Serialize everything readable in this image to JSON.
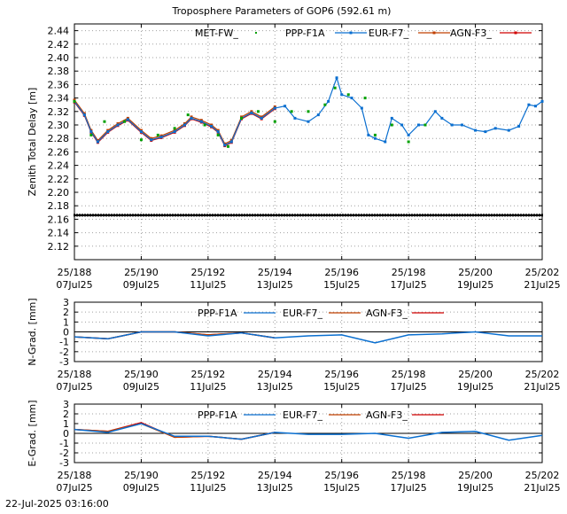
{
  "page_title": "Troposphere Parameters of GOP6 (592.61 m)",
  "footer_timestamp": "22-Jul-2025 03:16:00",
  "x_tick_labels": [
    {
      "top": "25/188",
      "bottom": "07Jul25"
    },
    {
      "top": "25/190",
      "bottom": "09Jul25"
    },
    {
      "top": "25/192",
      "bottom": "11Jul25"
    },
    {
      "top": "25/194",
      "bottom": "13Jul25"
    },
    {
      "top": "25/196",
      "bottom": "15Jul25"
    },
    {
      "top": "25/198",
      "bottom": "17Jul25"
    },
    {
      "top": "25/200",
      "bottom": "19Jul25"
    },
    {
      "top": "25/202",
      "bottom": "21Jul25"
    }
  ],
  "colors": {
    "met": "#00a000",
    "ppp": "#0a6fd0",
    "eur": "#c04000",
    "agn": "#d00000",
    "ref": "#000000",
    "grid": "#a0a0a0"
  },
  "chart_data": [
    {
      "type": "line",
      "ylabel": "Zenith Total Delay [m]",
      "xlim": [
        188,
        202
      ],
      "ylim": [
        2.1,
        2.45
      ],
      "yticks": [
        2.12,
        2.14,
        2.16,
        2.18,
        2.2,
        2.22,
        2.24,
        2.26,
        2.28,
        2.3,
        2.32,
        2.34,
        2.36,
        2.38,
        2.4,
        2.42,
        2.44
      ],
      "ytick_labels": [
        "2.12",
        "2.14",
        "2.16",
        "2.18",
        "2.20",
        "2.22",
        "2.24",
        "2.26",
        "2.28",
        "2.30",
        "2.32",
        "2.34",
        "2.36",
        "2.38",
        "2.40",
        "2.42",
        "2.44"
      ],
      "grid": true,
      "legend_position": "top",
      "reference_line": {
        "y": 2.166
      },
      "series": [
        {
          "name": "MET-FW_",
          "style": "points",
          "x": [
            188.0,
            188.5,
            188.9,
            189.5,
            190.0,
            190.5,
            191.0,
            191.4,
            191.9,
            192.3,
            192.6,
            193.0,
            193.5,
            194.0,
            194.5,
            195.0,
            195.5,
            195.8,
            196.2,
            196.7,
            197.0,
            197.5,
            198.0,
            198.5
          ],
          "y": [
            2.335,
            2.285,
            2.305,
            2.305,
            2.278,
            2.285,
            2.295,
            2.315,
            2.3,
            2.285,
            2.268,
            2.31,
            2.32,
            2.305,
            2.32,
            2.32,
            2.33,
            2.355,
            2.345,
            2.34,
            2.285,
            2.3,
            2.275,
            2.3
          ]
        },
        {
          "name": "PPP-F1A",
          "style": "line-points",
          "x": [
            188.0,
            188.3,
            188.5,
            188.7,
            189.0,
            189.3,
            189.6,
            190.0,
            190.3,
            190.6,
            191.0,
            191.3,
            191.5,
            191.8,
            192.1,
            192.3,
            192.5,
            192.7,
            193.0,
            193.3,
            193.6,
            194.0,
            194.3,
            194.6,
            195.0,
            195.3,
            195.6,
            195.85,
            196.0,
            196.3,
            196.6,
            196.8,
            197.0,
            197.3,
            197.5,
            197.8,
            198.0,
            198.3,
            198.5,
            198.8,
            199.0,
            199.3,
            199.6,
            200.0,
            200.3,
            200.6,
            201.0,
            201.3,
            201.6,
            201.8,
            202.0
          ],
          "y": [
            2.335,
            2.315,
            2.29,
            2.275,
            2.29,
            2.3,
            2.308,
            2.29,
            2.278,
            2.282,
            2.29,
            2.3,
            2.31,
            2.305,
            2.298,
            2.29,
            2.27,
            2.275,
            2.31,
            2.318,
            2.31,
            2.325,
            2.328,
            2.31,
            2.305,
            2.315,
            2.335,
            2.37,
            2.345,
            2.34,
            2.325,
            2.285,
            2.28,
            2.275,
            2.31,
            2.3,
            2.285,
            2.3,
            2.3,
            2.32,
            2.31,
            2.3,
            2.3,
            2.292,
            2.29,
            2.295,
            2.292,
            2.298,
            2.33,
            2.328,
            2.335
          ]
        },
        {
          "name": "EUR-F7_",
          "style": "line-points",
          "x": [
            188.0,
            188.3,
            188.5,
            188.7,
            189.0,
            189.3,
            189.6,
            190.0,
            190.3,
            190.6,
            191.0,
            191.3,
            191.5,
            191.8,
            192.1,
            192.3,
            192.5,
            192.7,
            193.0,
            193.3,
            193.6,
            194.0
          ],
          "y": [
            2.337,
            2.317,
            2.292,
            2.277,
            2.292,
            2.302,
            2.31,
            2.292,
            2.28,
            2.284,
            2.292,
            2.302,
            2.312,
            2.307,
            2.3,
            2.292,
            2.272,
            2.277,
            2.312,
            2.32,
            2.312,
            2.327
          ]
        },
        {
          "name": "AGN-F3_",
          "style": "line-points",
          "x": [
            188.0,
            188.3,
            188.5,
            188.7,
            189.0,
            189.3,
            189.6,
            190.0,
            190.3,
            190.6,
            191.0,
            191.3,
            191.5,
            191.8,
            192.1,
            192.3,
            192.5,
            192.7,
            193.0,
            193.3,
            193.6,
            194.0
          ],
          "y": [
            2.334,
            2.314,
            2.289,
            2.274,
            2.289,
            2.299,
            2.307,
            2.289,
            2.277,
            2.281,
            2.289,
            2.299,
            2.309,
            2.304,
            2.297,
            2.289,
            2.269,
            2.274,
            2.309,
            2.317,
            2.309,
            2.324
          ]
        }
      ]
    },
    {
      "type": "line",
      "ylabel": "N-Grad. [mm]",
      "xlim": [
        188,
        202
      ],
      "ylim": [
        -3,
        3
      ],
      "yticks": [
        -3,
        -2,
        -1,
        0,
        1,
        2,
        3
      ],
      "ytick_labels": [
        "-3",
        "-2",
        "-1",
        "0",
        "1",
        "2",
        "3"
      ],
      "grid": true,
      "legend_position": "top",
      "zero_line": true,
      "series": [
        {
          "name": "PPP-F1A",
          "x": [
            188,
            189,
            190,
            191,
            192,
            193,
            194,
            195,
            196,
            197,
            198,
            199,
            200,
            201,
            202
          ],
          "y": [
            -0.5,
            -0.7,
            0.0,
            0.0,
            -0.4,
            -0.1,
            -0.6,
            -0.4,
            -0.3,
            -1.1,
            -0.3,
            -0.2,
            0.0,
            -0.4,
            -0.4
          ]
        },
        {
          "name": "EUR-F7_",
          "x": [
            188,
            189,
            190,
            191,
            192,
            193,
            194
          ],
          "y": [
            -0.5,
            -0.7,
            0.0,
            0.0,
            -0.3,
            -0.1,
            -0.6
          ]
        },
        {
          "name": "AGN-F3_",
          "x": [
            188,
            189,
            190,
            191,
            192,
            193,
            194
          ],
          "y": [
            -0.5,
            -0.7,
            0.0,
            0.0,
            -0.3,
            -0.1,
            -0.6
          ]
        }
      ]
    },
    {
      "type": "line",
      "ylabel": "E-Grad. [mm]",
      "xlim": [
        188,
        202
      ],
      "ylim": [
        -3,
        3
      ],
      "yticks": [
        -3,
        -2,
        -1,
        0,
        1,
        2,
        3
      ],
      "ytick_labels": [
        "-3",
        "-2",
        "-1",
        "0",
        "1",
        "2",
        "3"
      ],
      "grid": true,
      "legend_position": "top",
      "zero_line": true,
      "series": [
        {
          "name": "PPP-F1A",
          "x": [
            188,
            189,
            190,
            191,
            192,
            193,
            194,
            195,
            196,
            197,
            198,
            199,
            200,
            201,
            202
          ],
          "y": [
            0.4,
            0.1,
            1.0,
            -0.3,
            -0.3,
            -0.6,
            0.1,
            -0.1,
            -0.1,
            0.0,
            -0.5,
            0.1,
            0.2,
            -0.7,
            -0.2
          ]
        },
        {
          "name": "EUR-F7_",
          "x": [
            188,
            189,
            190,
            191,
            192,
            193,
            194
          ],
          "y": [
            0.4,
            0.2,
            1.0,
            -0.4,
            -0.3,
            -0.6,
            0.1
          ]
        },
        {
          "name": "AGN-F3_",
          "x": [
            188,
            189,
            190,
            191,
            192,
            193,
            194
          ],
          "y": [
            0.4,
            0.2,
            1.1,
            -0.4,
            -0.3,
            -0.6,
            0.1
          ]
        }
      ]
    }
  ]
}
